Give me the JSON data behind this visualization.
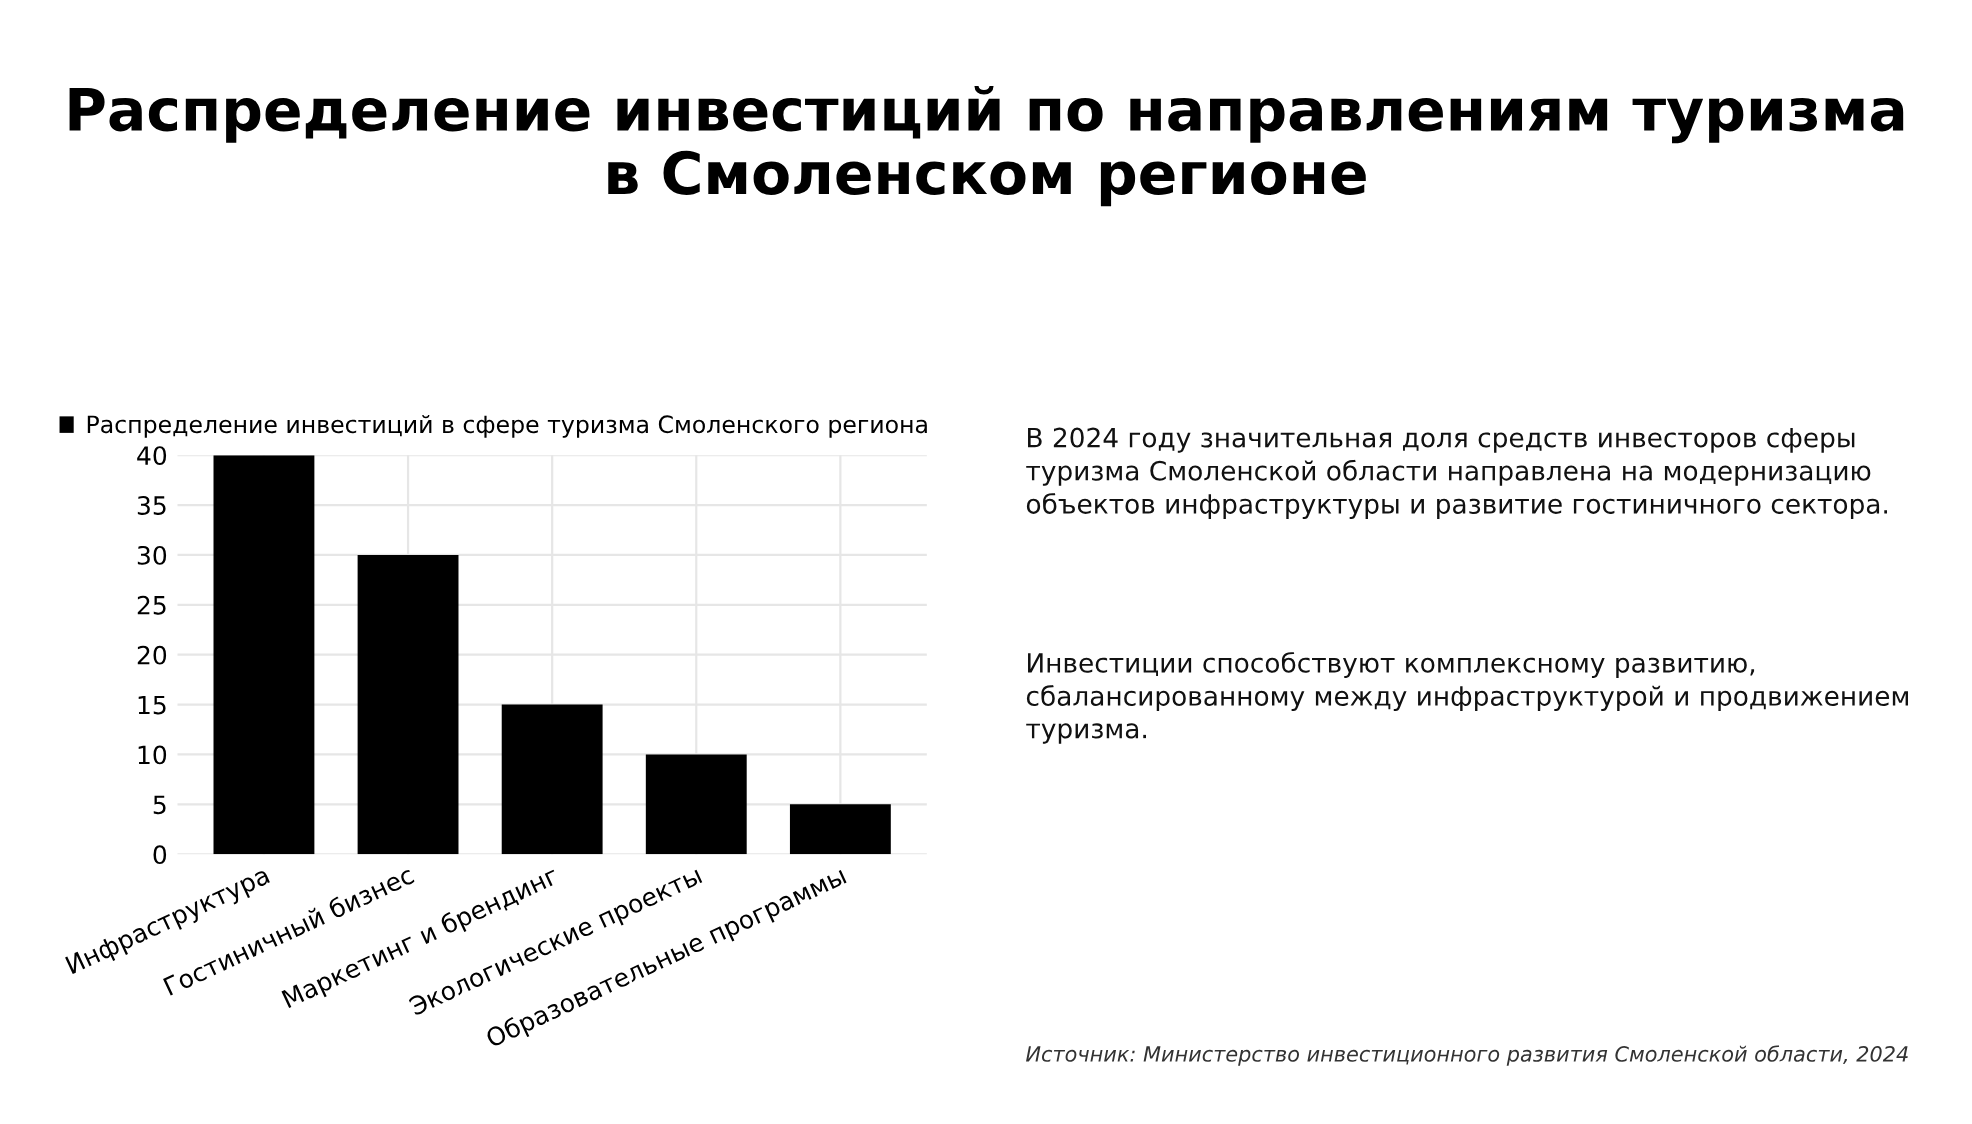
{
  "chart_data": {
    "type": "bar",
    "title": "Распределение инвестиций по направлениям туризма\nв Смоленском регионе",
    "categories": [
      "Инфраструктура",
      "Гостиничный бизнес",
      "Маркетинг и брендинг",
      "Экологические проекты",
      "Образовательные программы"
    ],
    "series": [
      {
        "name": "Распределение инвестиций в сфере туризма Смоленского региона",
        "color": "#000000",
        "values": [
          40,
          30,
          15,
          10,
          5
        ]
      }
    ],
    "ylim": [
      0,
      40
    ],
    "yticks": [
      0,
      5,
      10,
      15,
      20,
      25,
      30,
      35,
      40
    ],
    "grid": true,
    "legend": "top left",
    "annotations": [
      "В 2024 году значительная доля средств инвесторов сферы\nтуризма Смоленской области направлена на модернизацию\nобъектов инфраструктуры и развитие гостиничного сектора.",
      "Инвестиции способствуют комплексному развитию,\nсбалансированному между инфраструктурой и продвижением\nтуризма.",
      "Источник: Министерство инвестиционного развития Смоленской области, 2024"
    ]
  }
}
